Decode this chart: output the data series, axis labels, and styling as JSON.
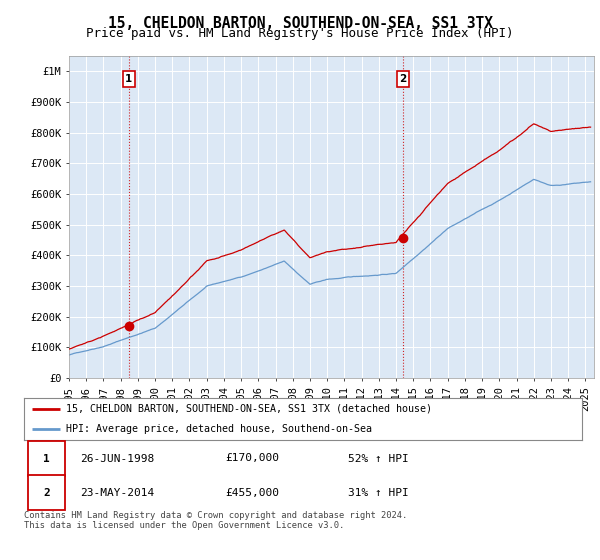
{
  "title": "15, CHELDON BARTON, SOUTHEND-ON-SEA, SS1 3TX",
  "subtitle": "Price paid vs. HM Land Registry's House Price Index (HPI)",
  "ylim": [
    0,
    1050000
  ],
  "yticks": [
    0,
    100000,
    200000,
    300000,
    400000,
    500000,
    600000,
    700000,
    800000,
    900000,
    1000000
  ],
  "ytick_labels": [
    "£0",
    "£100K",
    "£200K",
    "£300K",
    "£400K",
    "£500K",
    "£600K",
    "£700K",
    "£800K",
    "£900K",
    "£1M"
  ],
  "xlim_start": 1995.0,
  "xlim_end": 2025.5,
  "sale1_date": 1998.48,
  "sale1_price": 170000,
  "sale2_date": 2014.39,
  "sale2_price": 455000,
  "red_color": "#cc0000",
  "blue_color": "#6699cc",
  "plot_bg_color": "#dce8f5",
  "legend_label_red": "15, CHELDON BARTON, SOUTHEND-ON-SEA, SS1 3TX (detached house)",
  "legend_label_blue": "HPI: Average price, detached house, Southend-on-Sea",
  "table_row1": [
    "1",
    "26-JUN-1998",
    "£170,000",
    "52% ↑ HPI"
  ],
  "table_row2": [
    "2",
    "23-MAY-2014",
    "£455,000",
    "31% ↑ HPI"
  ],
  "footnote": "Contains HM Land Registry data © Crown copyright and database right 2024.\nThis data is licensed under the Open Government Licence v3.0.",
  "bg_color": "#ffffff",
  "grid_color": "#ffffff",
  "title_fontsize": 10.5,
  "subtitle_fontsize": 9,
  "tick_fontsize": 7.5,
  "xticks": [
    1995,
    1996,
    1997,
    1998,
    1999,
    2000,
    2001,
    2002,
    2003,
    2004,
    2005,
    2006,
    2007,
    2008,
    2009,
    2010,
    2011,
    2012,
    2013,
    2014,
    2015,
    2016,
    2017,
    2018,
    2019,
    2020,
    2021,
    2022,
    2023,
    2024,
    2025
  ]
}
